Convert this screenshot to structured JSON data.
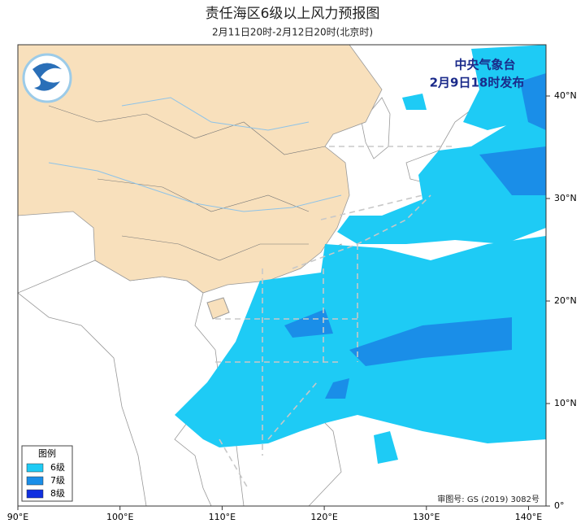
{
  "header": {
    "title": "责任海区6级以上风力预报图",
    "subtitle": "2月11日20时-2月12日20时(北京时)"
  },
  "issuer": {
    "name": "中央气象台",
    "time": "2月9日18时发布"
  },
  "axes": {
    "lon_ticks": [
      {
        "value": 90,
        "label": "90°E"
      },
      {
        "value": 100,
        "label": "100°E"
      },
      {
        "value": 110,
        "label": "110°E"
      },
      {
        "value": 120,
        "label": "120°E"
      },
      {
        "value": 130,
        "label": "130°E"
      },
      {
        "value": 140,
        "label": "140°E"
      }
    ],
    "lat_ticks": [
      {
        "value": 0,
        "label": "0°"
      },
      {
        "value": 10,
        "label": "10°N"
      },
      {
        "value": 20,
        "label": "20°N"
      },
      {
        "value": 30,
        "label": "30°N"
      },
      {
        "value": 40,
        "label": "40°N"
      }
    ]
  },
  "legend": {
    "title": "图例",
    "items": [
      {
        "label": "6级",
        "color": "#1ecbf5"
      },
      {
        "label": "7级",
        "color": "#1a8ee8"
      },
      {
        "label": "8级",
        "color": "#1030e0"
      }
    ]
  },
  "approval": "审图号: GS (2019) 3082号"
}
